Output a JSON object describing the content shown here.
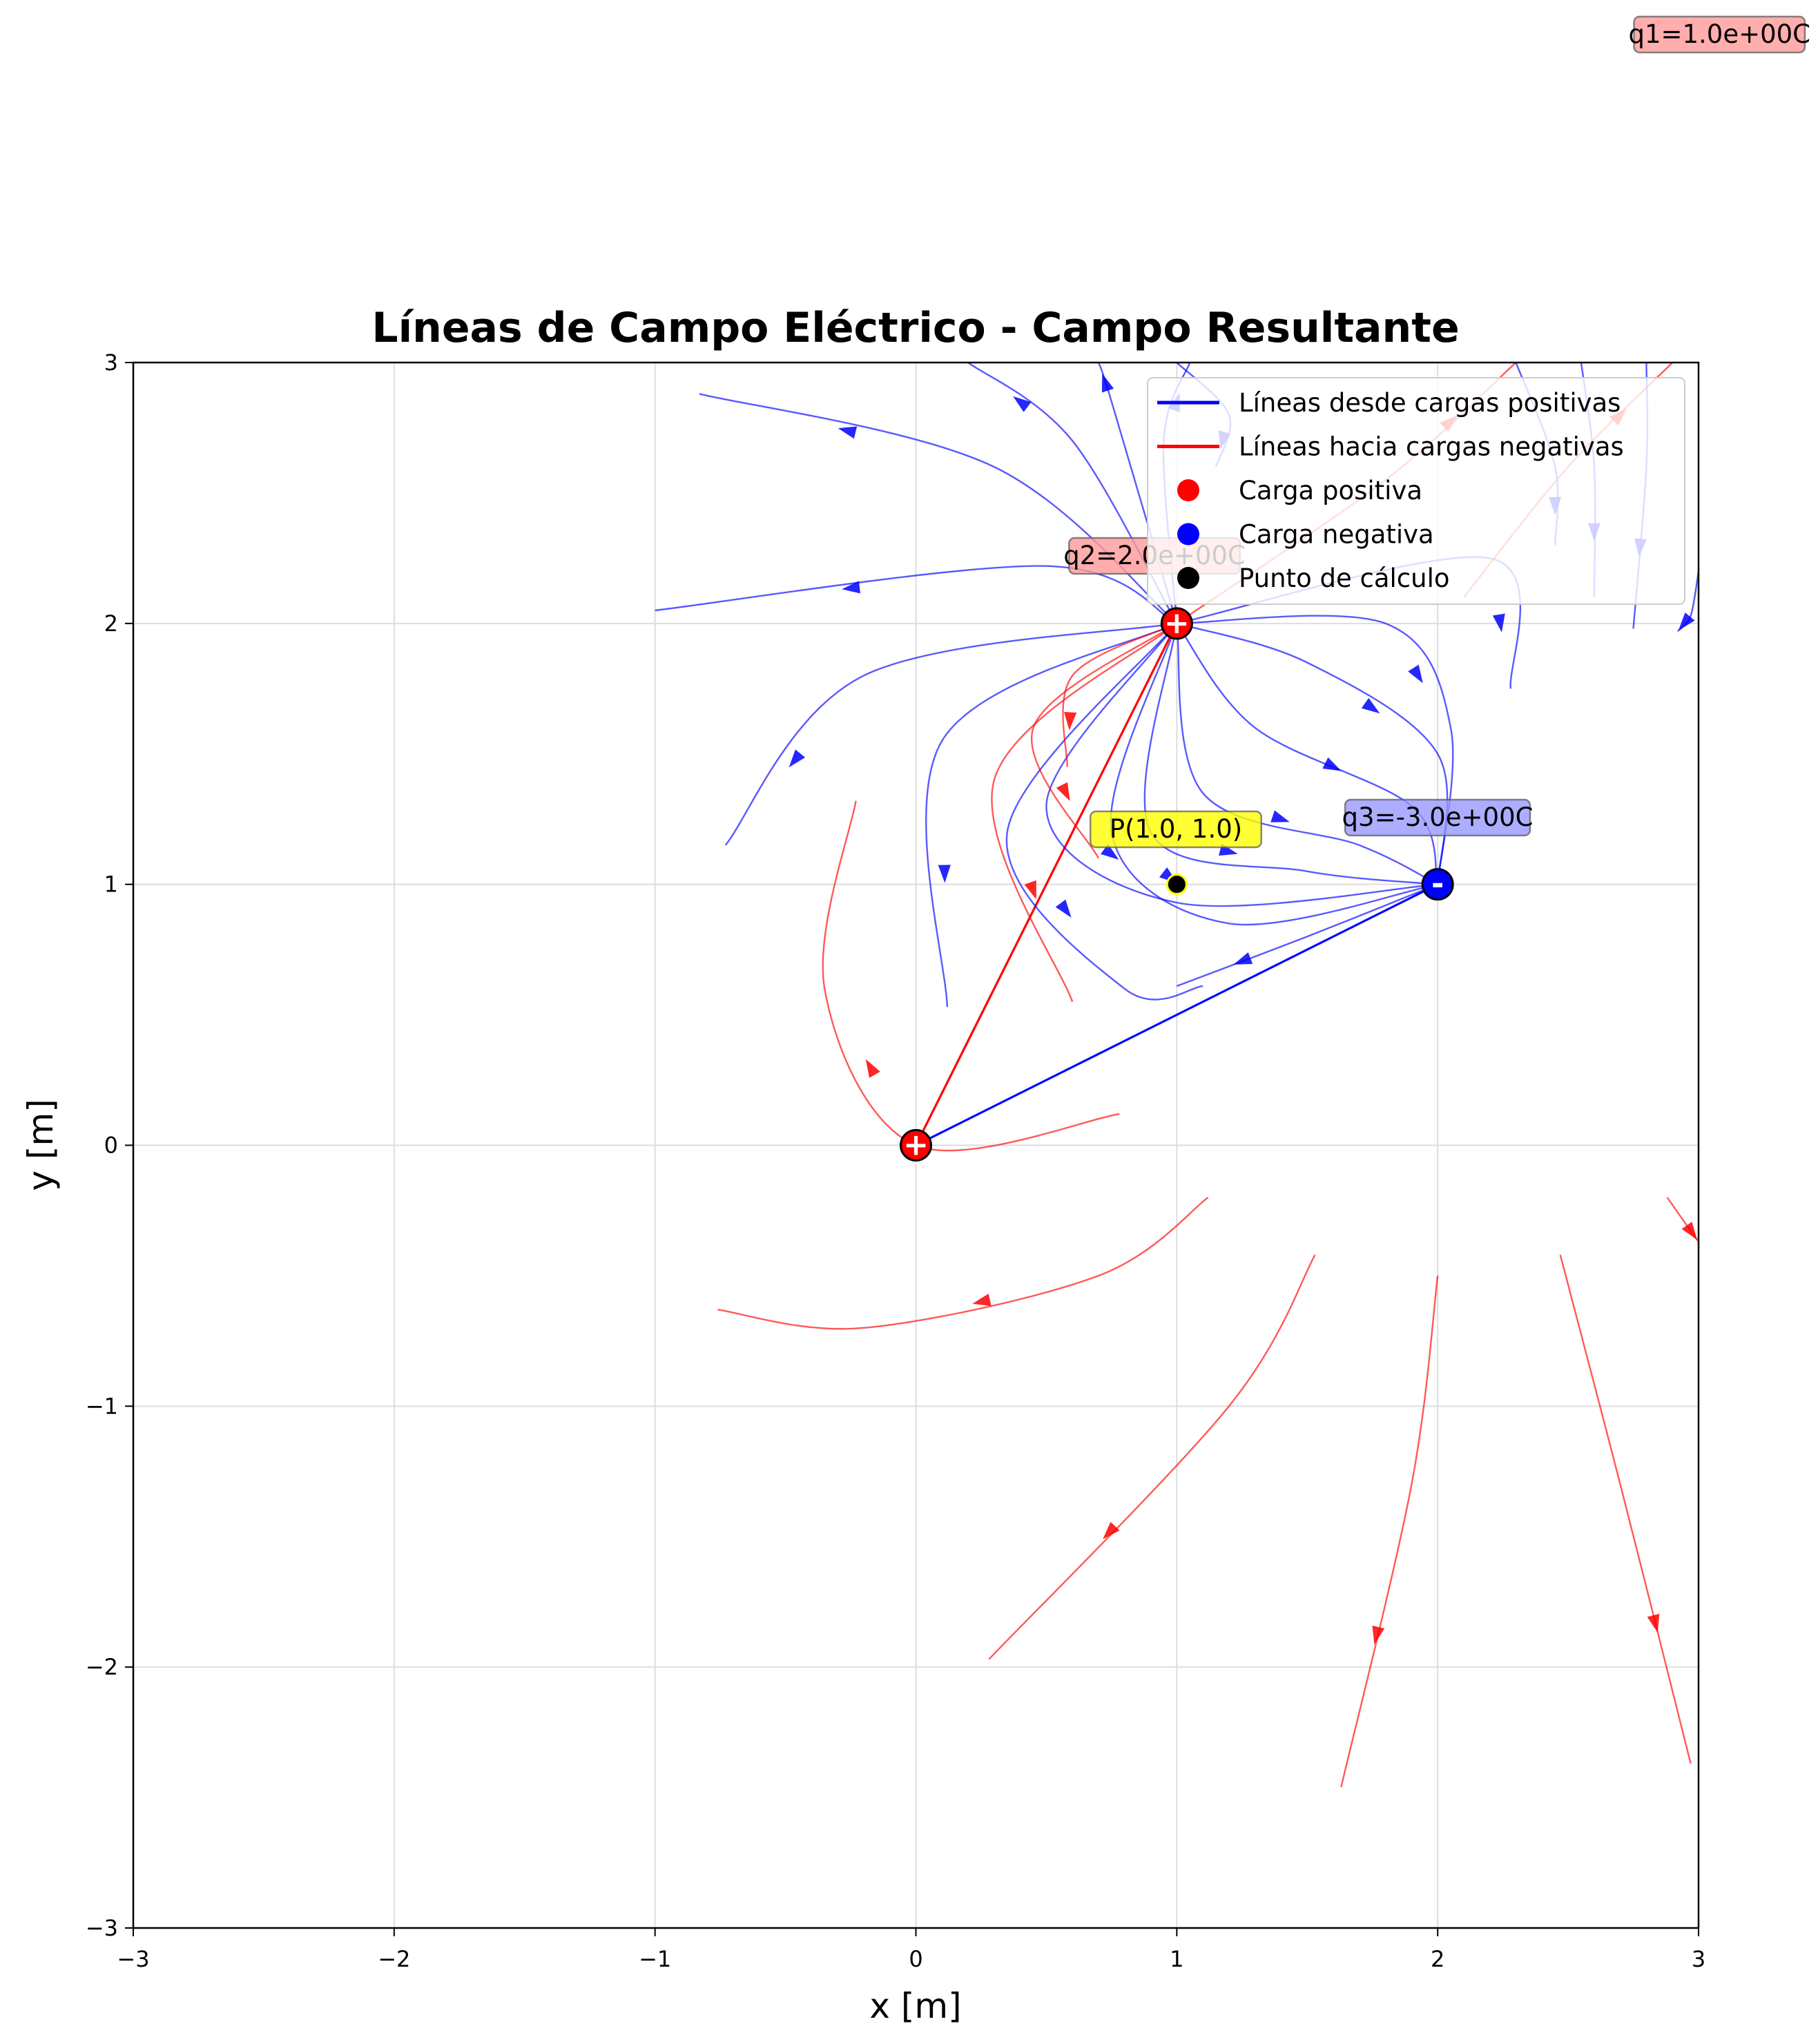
{
  "chart_data": {
    "type": "scatter",
    "title": "Líneas de Campo Eléctrico - Campo Resultante",
    "xlabel": "x [m]",
    "ylabel": "y [m]",
    "xlim": [
      -3,
      3
    ],
    "ylim": [
      -3,
      3
    ],
    "xticks": [
      -3,
      -2,
      -1,
      0,
      1,
      2,
      3
    ],
    "yticks": [
      -3,
      -2,
      -1,
      0,
      1,
      2,
      3
    ],
    "xtick_labels": [
      "−3",
      "−2",
      "−1",
      "0",
      "1",
      "2",
      "3"
    ],
    "ytick_labels": [
      "−3",
      "−2",
      "−1",
      "0",
      "1",
      "2",
      "3"
    ],
    "grid": true,
    "legend_position": "top-right",
    "legend": [
      {
        "label": "Líneas desde cargas positivas",
        "kind": "line",
        "color": "#0000ff"
      },
      {
        "label": "Líneas hacia cargas negativas",
        "kind": "line",
        "color": "#ff0000"
      },
      {
        "label": "Carga positiva",
        "kind": "marker",
        "color": "#ff0000"
      },
      {
        "label": "Carga negativa",
        "kind": "marker",
        "color": "#0000ff"
      },
      {
        "label": "Punto de cálculo",
        "kind": "marker",
        "color": "#000000"
      }
    ],
    "charges": [
      {
        "name": "q1",
        "x": 0,
        "y": 0,
        "q": 1.0,
        "sign": "+",
        "label": "q1=1.0e+00C"
      },
      {
        "name": "q2",
        "x": 1,
        "y": 2,
        "q": 2.0,
        "sign": "+",
        "label": "q2=2.0e+00C"
      },
      {
        "name": "q3",
        "x": 2,
        "y": 1,
        "q": -3.0,
        "sign": "-",
        "label": "q3=-3.0e+00C"
      }
    ],
    "point": {
      "x": 1.0,
      "y": 1.0,
      "label": "P(1.0, 1.0)"
    },
    "field_vectors": [
      {
        "from": [
          0,
          0
        ],
        "to": [
          1,
          2
        ],
        "color": "#ff0000"
      },
      {
        "from": [
          0,
          0
        ],
        "to": [
          2,
          1
        ],
        "color": "#0000ff"
      }
    ],
    "field_lines_blue": [
      [
        [
          1,
          2
        ],
        [
          0.5,
          2.22
        ],
        [
          -1,
          2.05
        ]
      ],
      [
        [
          1,
          2
        ],
        [
          0.3,
          2.6
        ],
        [
          -0.83,
          2.88
        ]
      ],
      [
        [
          1,
          2
        ],
        [
          0.6,
          2.7
        ],
        [
          0.2,
          3.0
        ]
      ],
      [
        [
          1,
          2
        ],
        [
          0.75,
          2.85
        ],
        [
          0.7,
          3.0
        ]
      ],
      [
        [
          1,
          2
        ],
        [
          0.95,
          2.7
        ],
        [
          1.05,
          3.0
        ]
      ],
      [
        [
          1,
          2
        ],
        [
          -0.2,
          1.8
        ],
        [
          -0.73,
          1.15
        ]
      ],
      [
        [
          1,
          2
        ],
        [
          0.1,
          1.55
        ],
        [
          0.12,
          0.53
        ]
      ],
      [
        [
          1,
          2
        ],
        [
          0.35,
          1.2
        ],
        [
          0.8,
          0.6
        ],
        [
          1.1,
          0.61
        ]
      ],
      [
        [
          1,
          2
        ],
        [
          0.5,
          1.3
        ],
        [
          1.0,
          0.93
        ],
        [
          2,
          1
        ]
      ],
      [
        [
          1,
          2
        ],
        [
          0.9,
          1.2
        ],
        [
          1.5,
          1.05
        ],
        [
          2,
          1
        ]
      ],
      [
        [
          1,
          2
        ],
        [
          1.1,
          1.35
        ],
        [
          1.7,
          1.15
        ],
        [
          2,
          1
        ]
      ],
      [
        [
          1,
          2
        ],
        [
          1.3,
          1.6
        ],
        [
          1.9,
          1.3
        ],
        [
          2,
          1
        ]
      ],
      [
        [
          1,
          2
        ],
        [
          1.5,
          1.85
        ],
        [
          2.0,
          1.5
        ],
        [
          2,
          1
        ]
      ],
      [
        [
          1,
          2
        ],
        [
          1.8,
          2.0
        ],
        [
          2.05,
          1.6
        ],
        [
          2,
          1
        ]
      ],
      [
        [
          1,
          2
        ],
        [
          2.2,
          2.25
        ],
        [
          2.28,
          1.75
        ]
      ],
      [
        [
          1,
          2
        ],
        [
          0.75,
          1.2
        ],
        [
          1.2,
          0.85
        ],
        [
          2,
          1
        ]
      ],
      [
        [
          2,
          1
        ],
        [
          1.5,
          0.8
        ],
        [
          1.0,
          0.61
        ]
      ],
      [
        [
          1.0,
          3.0
        ],
        [
          1.2,
          2.8
        ],
        [
          1.15,
          2.6
        ]
      ],
      [
        [
          2.3,
          3.0
        ],
        [
          2.45,
          2.6
        ],
        [
          2.45,
          2.3
        ]
      ],
      [
        [
          2.55,
          3.0
        ],
        [
          2.6,
          2.6
        ],
        [
          2.6,
          2.1
        ]
      ],
      [
        [
          2.8,
          3.0
        ],
        [
          2.8,
          2.6
        ],
        [
          2.75,
          1.98
        ]
      ],
      [
        [
          3.0,
          2.2
        ],
        [
          2.97,
          2.03
        ],
        [
          2.92,
          1.97
        ]
      ]
    ],
    "field_lines_red": [
      [
        [
          1,
          2
        ],
        [
          0.3,
          1.4
        ],
        [
          0.6,
          0.55
        ]
      ],
      [
        [
          1,
          2
        ],
        [
          0.6,
          1.8
        ],
        [
          0.58,
          1.45
        ]
      ],
      [
        [
          1,
          2
        ],
        [
          0.45,
          1.6
        ],
        [
          0.7,
          1.1
        ]
      ],
      [
        [
          0.78,
          0.12
        ],
        [
          0.0,
          0.0
        ],
        [
          -0.35,
          0.6
        ],
        [
          -0.23,
          1.32
        ]
      ],
      [
        [
          1.12,
          -0.2
        ],
        [
          0.7,
          -0.5
        ],
        [
          -0.2,
          -0.7
        ],
        [
          -0.76,
          -0.63
        ]
      ],
      [
        [
          1.53,
          -0.42
        ],
        [
          1.2,
          -1.0
        ],
        [
          0.28,
          -1.97
        ]
      ],
      [
        [
          2.0,
          -0.5
        ],
        [
          1.9,
          -1.3
        ],
        [
          1.63,
          -2.46
        ]
      ],
      [
        [
          2.47,
          -0.42
        ],
        [
          2.7,
          -1.3
        ],
        [
          2.97,
          -2.37
        ]
      ],
      [
        [
          2.88,
          -0.2
        ],
        [
          2.95,
          -0.3
        ],
        [
          3.0,
          -0.37
        ]
      ],
      [
        [
          1,
          2
        ],
        [
          1.8,
          2.55
        ],
        [
          2.3,
          3.0
        ]
      ],
      [
        [
          2.1,
          2.1
        ],
        [
          2.5,
          2.6
        ],
        [
          2.9,
          3.0
        ]
      ]
    ]
  }
}
